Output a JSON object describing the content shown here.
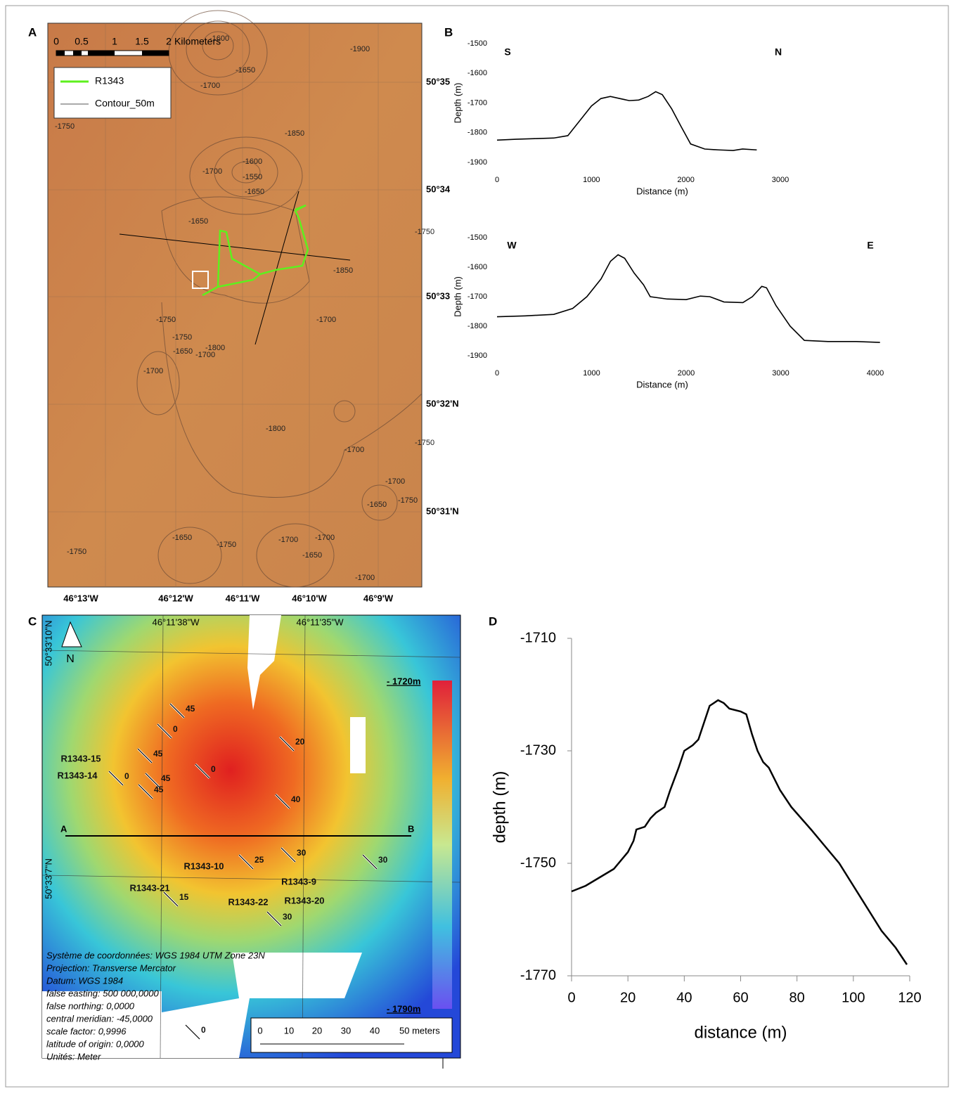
{
  "panel_labels": [
    "A",
    "B",
    "C",
    "D"
  ],
  "map_a": {
    "scale": [
      "0",
      "0.5",
      "1",
      "1.5",
      "2",
      "Kilometers"
    ],
    "legend": [
      "R1343",
      "Contour_50m"
    ],
    "lat_labels": [
      "50°35",
      "50°34",
      "50°33",
      "50°32'N",
      "50°31'N"
    ],
    "lon_labels": [
      "46°13'W",
      "46°12'W",
      "46°11'W",
      "46°10'W",
      "46°9'W"
    ],
    "contour_labels": [
      "-1600",
      "-1650",
      "-1700",
      "-1900",
      "-1750",
      "-1850",
      "-1700",
      "-1600",
      "-1550",
      "-1650",
      "-1650",
      "-1850",
      "-1750",
      "-1750",
      "-1650",
      "-1800",
      "-1700",
      "-1700",
      "-1800",
      "-1750",
      "-1700",
      "-1750",
      "-1700",
      "-1650",
      "-1750",
      "-1700",
      "-1650",
      "-1750",
      "-1700",
      "-1700",
      "-1650",
      "-1750",
      "-1700"
    ]
  },
  "map_c": {
    "lon_labels": [
      "46°11'38\"W",
      "46°11'35\"W"
    ],
    "lat_labels": [
      "50°33'10\"N",
      "50°33'7\"N"
    ],
    "north": "N",
    "colorbar": [
      "- 1720m",
      "- 1790m"
    ],
    "section": [
      "A",
      "B"
    ],
    "stations": [
      "R1343-15",
      "R1343-14",
      "R1343-10",
      "R1343-21",
      "R1343-9",
      "R1343-22",
      "R1343-20"
    ],
    "dips": [
      "45",
      "0",
      "45",
      "45",
      "45",
      "0",
      "0",
      "20",
      "40",
      "25",
      "30",
      "30",
      "15",
      "30",
      "0"
    ],
    "metadata": [
      "Système de coordonnées: WGS 1984 UTM Zone 23N",
      "Projection: Transverse Mercator",
      "Datum: WGS 1984",
      "false easting: 500 000,0000",
      "false northing: 0,0000",
      "central meridian: -45,0000",
      "scale factor: 0,9996",
      "latitude of origin: 0,0000",
      "Unités: Meter"
    ],
    "scale": [
      "0",
      "10",
      "20",
      "30",
      "40",
      "50 meters"
    ]
  },
  "chart_data": [
    {
      "type": "line",
      "xlabel": "Distance (m)",
      "ylabel": "Depth (m)",
      "annotations": [
        "S",
        "N"
      ],
      "x": [
        0,
        200,
        400,
        600,
        750,
        800,
        900,
        1000,
        1100,
        1200,
        1300,
        1400,
        1500,
        1600,
        1680,
        1750,
        1850,
        1950,
        2050,
        2200,
        2350,
        2500,
        2600,
        2750
      ],
      "series": [
        {
          "color": "#000000",
          "values": [
            -1825,
            -1822,
            -1820,
            -1818,
            -1810,
            -1790,
            -1750,
            -1710,
            -1685,
            -1678,
            -1685,
            -1692,
            -1690,
            -1678,
            -1662,
            -1672,
            -1720,
            -1780,
            -1838,
            -1855,
            -1858,
            -1860,
            -1855,
            -1858
          ]
        }
      ],
      "xlim": [
        0,
        3000
      ],
      "ylim": [
        -1900,
        -1500
      ],
      "xticks": [
        0,
        1000,
        2000,
        3000
      ],
      "yticks": [
        -1500,
        -1600,
        -1700,
        -1800,
        -1900
      ]
    },
    {
      "type": "line",
      "xlabel": "Distance (m)",
      "ylabel": "Depth (m)",
      "annotations": [
        "W",
        "E"
      ],
      "x": [
        0,
        300,
        600,
        800,
        950,
        1100,
        1200,
        1280,
        1350,
        1450,
        1550,
        1620,
        1800,
        2000,
        2150,
        2250,
        2400,
        2600,
        2700,
        2800,
        2850,
        2950,
        3100,
        3250,
        3500,
        3800,
        4050
      ],
      "series": [
        {
          "color": "#000000",
          "values": [
            -1768,
            -1765,
            -1760,
            -1740,
            -1700,
            -1640,
            -1580,
            -1558,
            -1570,
            -1620,
            -1660,
            -1700,
            -1708,
            -1710,
            -1698,
            -1700,
            -1718,
            -1720,
            -1700,
            -1665,
            -1670,
            -1730,
            -1800,
            -1848,
            -1852,
            -1852,
            -1855
          ]
        }
      ],
      "xlim": [
        0,
        4000
      ],
      "ylim": [
        -1900,
        -1500
      ],
      "xticks": [
        0,
        1000,
        2000,
        3000,
        4000
      ],
      "yticks": [
        -1500,
        -1600,
        -1700,
        -1800,
        -1900
      ]
    },
    {
      "type": "line",
      "xlabel": "distance (m)",
      "ylabel": "depth (m)",
      "x": [
        0,
        5,
        10,
        15,
        20,
        22,
        23,
        26,
        28,
        30,
        33,
        35,
        38,
        40,
        43,
        45,
        47,
        49,
        52,
        54,
        56,
        60,
        62,
        64,
        66,
        68,
        70,
        74,
        78,
        85,
        90,
        95,
        100,
        105,
        110,
        115,
        119
      ],
      "series": [
        {
          "color": "#000000",
          "values": [
            -1755,
            -1754,
            -1752.5,
            -1751,
            -1748,
            -1746,
            -1744,
            -1743.5,
            -1742,
            -1741,
            -1740,
            -1737,
            -1733,
            -1730,
            -1729,
            -1728,
            -1725,
            -1722,
            -1721,
            -1721.5,
            -1722.5,
            -1723,
            -1723.5,
            -1727,
            -1730,
            -1732,
            -1733,
            -1737,
            -1740,
            -1744,
            -1747,
            -1750,
            -1754,
            -1758,
            -1762,
            -1765,
            -1768
          ]
        }
      ],
      "xlim": [
        0,
        120
      ],
      "ylim": [
        -1770,
        -1710
      ],
      "xticks": [
        0,
        20,
        40,
        60,
        80,
        100,
        120
      ],
      "yticks": [
        -1710,
        -1730,
        -1750,
        -1770
      ]
    }
  ]
}
